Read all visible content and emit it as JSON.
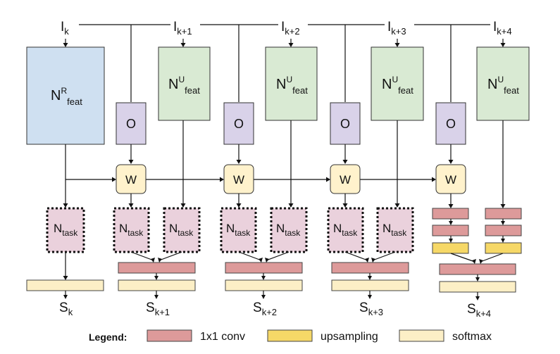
{
  "inputs": [
    {
      "base": "I",
      "sub": "k"
    },
    {
      "base": "I",
      "sub": "k+1"
    },
    {
      "base": "I",
      "sub": "k+2"
    },
    {
      "base": "I",
      "sub": "k+3"
    },
    {
      "base": "I",
      "sub": "k+4"
    }
  ],
  "outputs": [
    {
      "base": "S",
      "sub": "k"
    },
    {
      "base": "S",
      "sub": "k+1"
    },
    {
      "base": "S",
      "sub": "k+2"
    },
    {
      "base": "S",
      "sub": "k+3"
    },
    {
      "base": "S",
      "sub": "k+4"
    }
  ],
  "feature_nets": [
    {
      "base": "N",
      "sup": "R",
      "sub": "feat"
    },
    {
      "base": "N",
      "sup": "U",
      "sub": "feat"
    },
    {
      "base": "N",
      "sup": "U",
      "sub": "feat"
    },
    {
      "base": "N",
      "sup": "U",
      "sub": "feat"
    },
    {
      "base": "N",
      "sup": "U",
      "sub": "feat"
    }
  ],
  "flow_label": "O",
  "warp_label": "W",
  "task_net": {
    "base": "N",
    "sub": "task"
  },
  "legend": {
    "title": "Legend:",
    "conv": "1x1 conv",
    "upsampling": "upsampling",
    "softmax": "softmax"
  },
  "colors": {
    "ref_feat": "#cfe0f1",
    "upd_feat": "#d9ead3",
    "flow": "#d9d2e9",
    "warp": "#fff2cc",
    "task": "#ead1dc",
    "conv": "#dd9a9a",
    "upsampling": "#f6d867",
    "softmax": "#fcefc6",
    "line": "#111111"
  }
}
